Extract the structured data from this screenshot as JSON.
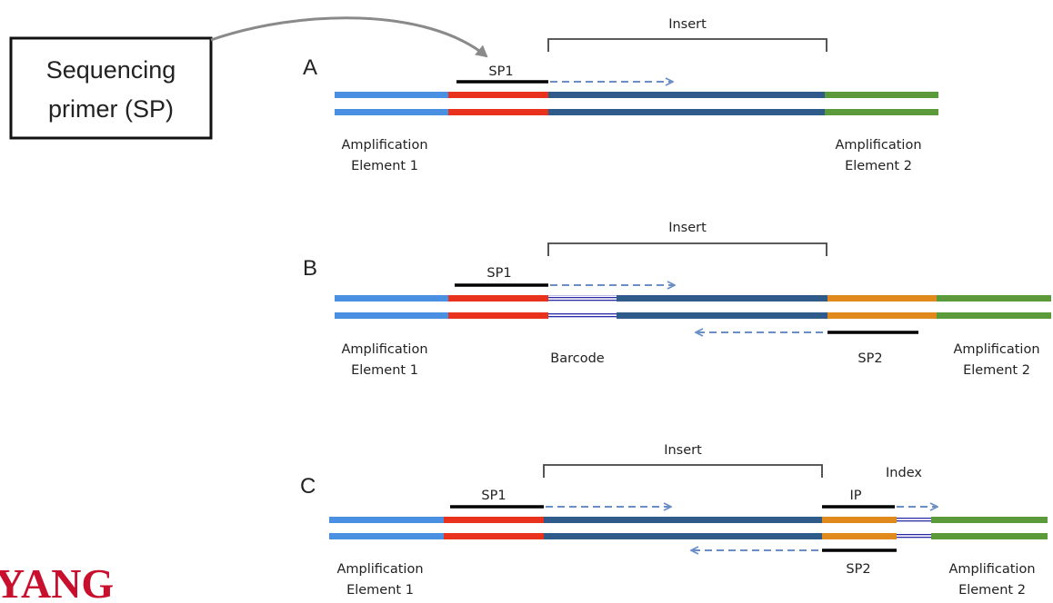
{
  "callout": {
    "line1": "Sequencing",
    "line2": "primer (SP)"
  },
  "logo_text": "YANG",
  "colors": {
    "element1": "#4a90e2",
    "sp1_region": "#e8321e",
    "insert": "#2f5b8a",
    "element2": "#5a9a3a",
    "sp2_region": "#e08a1e",
    "barcode_stripe": "#2a2aa8",
    "arrow": "#6a8fc6",
    "logo": "#c8102e"
  },
  "panels": [
    {
      "id": "A",
      "label": "A",
      "insert_label": "Insert",
      "sp1_label": "SP1",
      "left_label_1": "Amplification",
      "left_label_2": "Element 1",
      "right_label_1": "Amplification",
      "right_label_2": "Element 2"
    },
    {
      "id": "B",
      "label": "B",
      "insert_label": "Insert",
      "sp1_label": "SP1",
      "sp2_label": "SP2",
      "barcode_label": "Barcode",
      "left_label_1": "Amplification",
      "left_label_2": "Element 1",
      "right_label_1": "Amplification",
      "right_label_2": "Element 2"
    },
    {
      "id": "C",
      "label": "C",
      "insert_label": "Insert",
      "index_label": "Index",
      "ip_label": "IP",
      "sp1_label": "SP1",
      "sp2_label": "SP2",
      "left_label_1": "Amplification",
      "left_label_2": "Element 1",
      "right_label_1": "Amplification",
      "right_label_2": "Element 2"
    }
  ]
}
